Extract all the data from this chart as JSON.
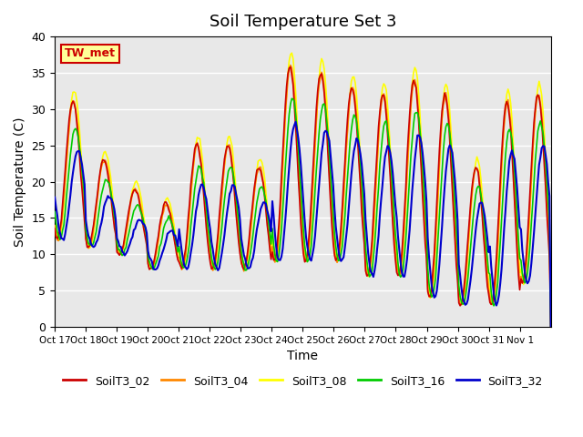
{
  "title": "Soil Temperature Set 3",
  "xlabel": "Time",
  "ylabel": "Soil Temperature (C)",
  "ylim": [
    0,
    40
  ],
  "background_color": "#e8e8e8",
  "series": [
    "SoilT3_02",
    "SoilT3_04",
    "SoilT3_08",
    "SoilT3_16",
    "SoilT3_32"
  ],
  "colors": [
    "#cc0000",
    "#ff8800",
    "#ffff00",
    "#00cc00",
    "#0000cc"
  ],
  "site_label": "TW_met",
  "x_tick_labels": [
    "Oct 17",
    "Oct 18",
    "Oct 19",
    "Oct 20",
    "Oct 21",
    "Oct 22",
    "Oct 23",
    "Oct 24",
    "Oct 25",
    "Oct 26",
    "Oct 27",
    "Oct 28",
    "Oct 29",
    "Oct 30",
    "Oct 31",
    "Nov 1"
  ],
  "day_peaks_02": [
    31,
    23,
    19,
    17,
    25,
    25,
    22,
    36,
    35,
    33,
    32,
    34,
    32,
    22,
    31,
    32
  ],
  "day_mins_02": [
    12,
    11,
    10,
    8,
    8,
    8,
    8,
    9,
    9,
    9,
    7,
    7,
    4,
    3,
    3,
    6
  ],
  "n_days": 16,
  "hours_per_day": 24
}
